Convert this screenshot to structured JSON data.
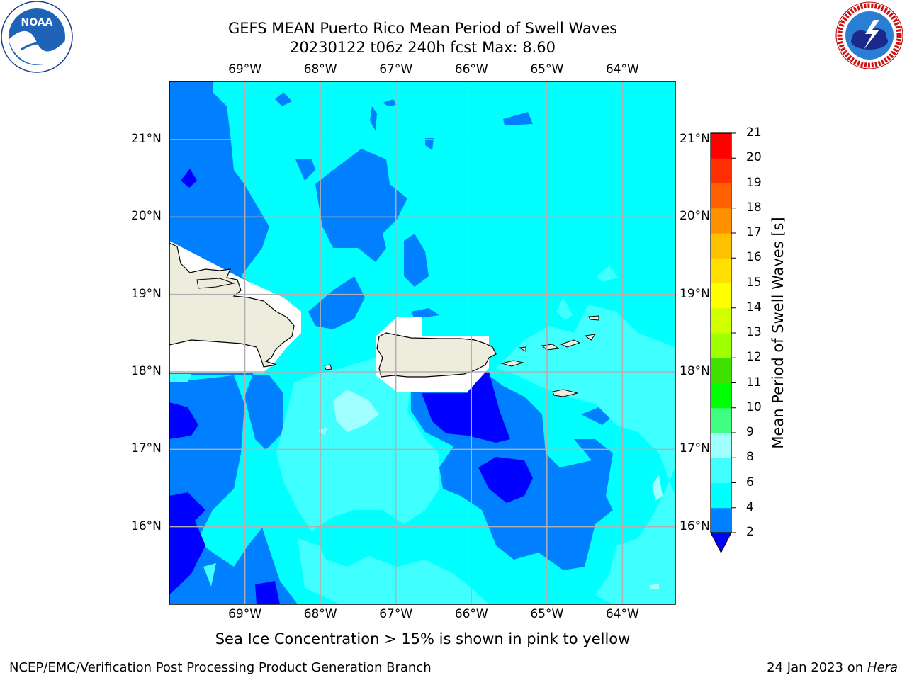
{
  "header": {
    "title_line1": "GEFS MEAN Puerto Rico Mean Period of Swell Waves",
    "title_line2": "20230122 t06z 240h fcst   Max: 8.60"
  },
  "logos": {
    "left": {
      "name": "noaa-logo",
      "text": "NOAA",
      "ring_text": "NATIONAL OCEANIC AND ATMOSPHERIC ADMINISTRATION · U.S. DEPARTMENT OF COMMERCE"
    },
    "right": {
      "name": "nws-logo",
      "ring_text": "NATIONAL WEATHER SERVICE"
    }
  },
  "map": {
    "lon_labels": [
      "69°W",
      "68°W",
      "67°W",
      "66°W",
      "65°W",
      "64°W"
    ],
    "lat_labels": [
      "21°N",
      "20°N",
      "19°N",
      "18°N",
      "17°N",
      "16°N"
    ],
    "lon_range": [
      -70.0,
      -63.3
    ],
    "lat_range": [
      15.0,
      21.75
    ],
    "gridlines": true,
    "colors": {
      "ocean_base": "#00ffff",
      "land": "#eeecdc",
      "grid": "#b0b0b0"
    },
    "regions": [
      {
        "label": "Hispaniola (partial)",
        "value_range": "land"
      },
      {
        "label": "Puerto Rico",
        "value_range": "land"
      },
      {
        "label": "Virgin Islands",
        "value_range": "land"
      }
    ]
  },
  "colorbar": {
    "label": "Mean Period of Swell Waves [s]",
    "ticks": [
      "21",
      "20",
      "19",
      "18",
      "17",
      "16",
      "15",
      "14",
      "13",
      "12",
      "11",
      "10",
      "9",
      "8",
      "6",
      "4",
      "2"
    ],
    "levels": [
      2,
      4,
      6,
      8,
      9,
      10,
      11,
      12,
      13,
      14,
      15,
      16,
      17,
      18,
      19,
      20,
      21
    ],
    "colors": [
      "#0000ff",
      "#0080ff",
      "#00ffff",
      "#40ffff",
      "#a0ffff",
      "#40ff80",
      "#00ff00",
      "#40e000",
      "#a0ff00",
      "#d0ff00",
      "#ffff00",
      "#ffe000",
      "#ffc000",
      "#ff9000",
      "#ff6000",
      "#ff3000",
      "#ff0000"
    ],
    "extend": "min"
  },
  "footer": {
    "note": "Sea Ice Concentration > 15% is shown in pink to yellow",
    "left": "NCEP/EMC/Verification Post Processing Product Generation Branch",
    "right_prefix": "24 Jan 2023 on ",
    "right_host": "Hera"
  }
}
